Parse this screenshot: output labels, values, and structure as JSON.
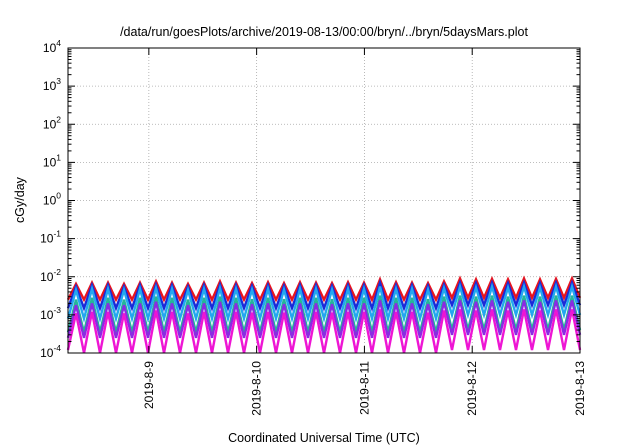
{
  "chart_data": {
    "type": "line",
    "title": "/data/run/goesPlots/archive/2019-08-13/00:00/bryn/../bryn/5daysMars.plot",
    "xlabel": "Coordinated Universal Time (UTC)",
    "ylabel": "cGy/day",
    "yscale": "log",
    "ylim": [
      0.0001,
      10000
    ],
    "xlim": [
      "2019-08-08T06:00",
      "2019-08-13T00:00"
    ],
    "grid": true,
    "x_ticks": [
      "2019-8-9",
      "2019-8-10",
      "2019-8-11",
      "2019-8-12",
      "2019-8-13"
    ],
    "y_ticks": [
      {
        "base": "10",
        "exp": "-4"
      },
      {
        "base": "10",
        "exp": "-3"
      },
      {
        "base": "10",
        "exp": "-2"
      },
      {
        "base": "10",
        "exp": "-1"
      },
      {
        "base": "10",
        "exp": "0"
      },
      {
        "base": "10",
        "exp": "1"
      },
      {
        "base": "10",
        "exp": "2"
      },
      {
        "base": "10",
        "exp": "3"
      },
      {
        "base": "10",
        "exp": "4"
      }
    ],
    "series": [
      {
        "color": "#e8141e",
        "values": [
          0.0025,
          0.0065,
          0.0025,
          0.007,
          0.0025,
          0.007,
          0.0025,
          0.0065,
          0.0025,
          0.007,
          0.0025,
          0.0075,
          0.0025,
          0.007,
          0.0025,
          0.0065,
          0.0025,
          0.007,
          0.0025,
          0.0075,
          0.0025,
          0.007,
          0.0025,
          0.0068,
          0.0025,
          0.0072,
          0.0025,
          0.0068,
          0.0025,
          0.0072,
          0.0025,
          0.007,
          0.0025,
          0.0068,
          0.0025,
          0.0072,
          0.0025,
          0.007,
          0.0025,
          0.0085,
          0.0025,
          0.0072,
          0.0025,
          0.007,
          0.0025,
          0.0068,
          0.0025,
          0.0075,
          0.0028,
          0.009,
          0.0028,
          0.0085,
          0.0028,
          0.0088,
          0.0028,
          0.0085,
          0.0028,
          0.009,
          0.0028,
          0.0085,
          0.0028,
          0.0088,
          0.0028,
          0.009,
          0.0028
        ]
      },
      {
        "color": "#1a2ad8",
        "values": [
          0.0015,
          0.0055,
          0.0015,
          0.006,
          0.0015,
          0.006,
          0.0015,
          0.0055,
          0.0015,
          0.006,
          0.0015,
          0.0062,
          0.0015,
          0.006,
          0.0015,
          0.0055,
          0.0015,
          0.006,
          0.0015,
          0.0062,
          0.0015,
          0.006,
          0.0015,
          0.0058,
          0.0015,
          0.006,
          0.0015,
          0.0058,
          0.0015,
          0.006,
          0.0015,
          0.006,
          0.0015,
          0.0058,
          0.0015,
          0.006,
          0.0015,
          0.006,
          0.0015,
          0.007,
          0.0015,
          0.006,
          0.0015,
          0.006,
          0.0015,
          0.0058,
          0.0015,
          0.0062,
          0.0018,
          0.007,
          0.0018,
          0.0068,
          0.0018,
          0.007,
          0.0018,
          0.0068,
          0.0018,
          0.007,
          0.0018,
          0.0068,
          0.0018,
          0.007,
          0.0018,
          0.007,
          0.0018
        ]
      },
      {
        "color": "#22a7f0",
        "values": [
          0.0008,
          0.0045,
          0.0008,
          0.0048,
          0.0008,
          0.0048,
          0.0008,
          0.0045,
          0.0008,
          0.0048,
          0.0008,
          0.005,
          0.0008,
          0.0048,
          0.0008,
          0.0045,
          0.0008,
          0.0048,
          0.0008,
          0.005,
          0.0008,
          0.0048,
          0.0008,
          0.0046,
          0.0008,
          0.0048,
          0.0008,
          0.0046,
          0.0008,
          0.0048,
          0.0008,
          0.0048,
          0.0008,
          0.0046,
          0.0008,
          0.0048,
          0.0008,
          0.0048,
          0.0008,
          0.0055,
          0.0008,
          0.0048,
          0.0008,
          0.0048,
          0.0008,
          0.0046,
          0.0008,
          0.005,
          0.001,
          0.0055,
          0.001,
          0.0052,
          0.001,
          0.0055,
          0.001,
          0.0052,
          0.001,
          0.0055,
          0.001,
          0.0052,
          0.001,
          0.0055,
          0.001,
          0.0055,
          0.001
        ]
      },
      {
        "color": "#25b59a",
        "values": [
          0.00035,
          0.0025,
          0.00035,
          0.0028,
          0.00035,
          0.0028,
          0.00035,
          0.0025,
          0.00035,
          0.0028,
          0.00035,
          0.003,
          0.00035,
          0.0028,
          0.00035,
          0.0025,
          0.00035,
          0.0028,
          0.00035,
          0.003,
          0.00035,
          0.0028,
          0.00035,
          0.0026,
          0.00035,
          0.0028,
          0.00035,
          0.0026,
          0.00035,
          0.0028,
          0.00035,
          0.0028,
          0.00035,
          0.0026,
          0.00035,
          0.0028,
          0.00035,
          0.0028,
          0.00035,
          0.0032,
          0.00035,
          0.0028,
          0.00035,
          0.0028,
          0.00035,
          0.0026,
          0.00035,
          0.003,
          0.0004,
          0.0032,
          0.0004,
          0.003,
          0.0004,
          0.0032,
          0.0004,
          0.003,
          0.0004,
          0.0032,
          0.0004,
          0.003,
          0.0004,
          0.0032,
          0.0004,
          0.0032,
          0.0004
        ]
      },
      {
        "color": "#8a2be2",
        "values": [
          0.00025,
          0.0018,
          0.00025,
          0.002,
          0.00025,
          0.002,
          0.00025,
          0.0018,
          0.00025,
          0.002,
          0.00025,
          0.0022,
          0.00025,
          0.002,
          0.00025,
          0.0018,
          0.00025,
          0.002,
          0.00025,
          0.0022,
          0.00025,
          0.002,
          0.00025,
          0.0019,
          0.00025,
          0.002,
          0.00025,
          0.0019,
          0.00025,
          0.002,
          0.00025,
          0.002,
          0.00025,
          0.0019,
          0.00025,
          0.002,
          0.00025,
          0.002,
          0.00025,
          0.0024,
          0.00025,
          0.002,
          0.00025,
          0.002,
          0.00025,
          0.0019,
          0.00025,
          0.0022,
          0.0003,
          0.0024,
          0.0003,
          0.0022,
          0.0003,
          0.0024,
          0.0003,
          0.0022,
          0.0003,
          0.0024,
          0.0003,
          0.0022,
          0.0003,
          0.0024,
          0.0003,
          0.0024,
          0.0003
        ]
      },
      {
        "color": "#ee15d4",
        "values": [
          0.00012,
          0.0011,
          0.0001,
          0.0012,
          0.0001,
          0.0012,
          0.0001,
          0.0011,
          0.0001,
          0.0012,
          0.0001,
          0.0013,
          0.0001,
          0.0012,
          0.0001,
          0.0011,
          0.0001,
          0.0012,
          0.0001,
          0.0013,
          0.0001,
          0.0012,
          0.0001,
          0.00115,
          0.0001,
          0.0012,
          0.0001,
          0.00115,
          0.0001,
          0.0012,
          0.0001,
          0.0012,
          0.0001,
          0.00115,
          0.0001,
          0.0012,
          0.0001,
          0.0012,
          0.0001,
          0.0014,
          0.0001,
          0.0012,
          0.0001,
          0.0012,
          0.0001,
          0.00115,
          0.0001,
          0.0013,
          0.00012,
          0.0014,
          0.00012,
          0.0013,
          0.00012,
          0.0014,
          0.00012,
          0.0013,
          0.00012,
          0.0014,
          0.00012,
          0.0013,
          0.00012,
          0.0014,
          0.00012,
          0.0014,
          0.00012
        ]
      }
    ]
  }
}
